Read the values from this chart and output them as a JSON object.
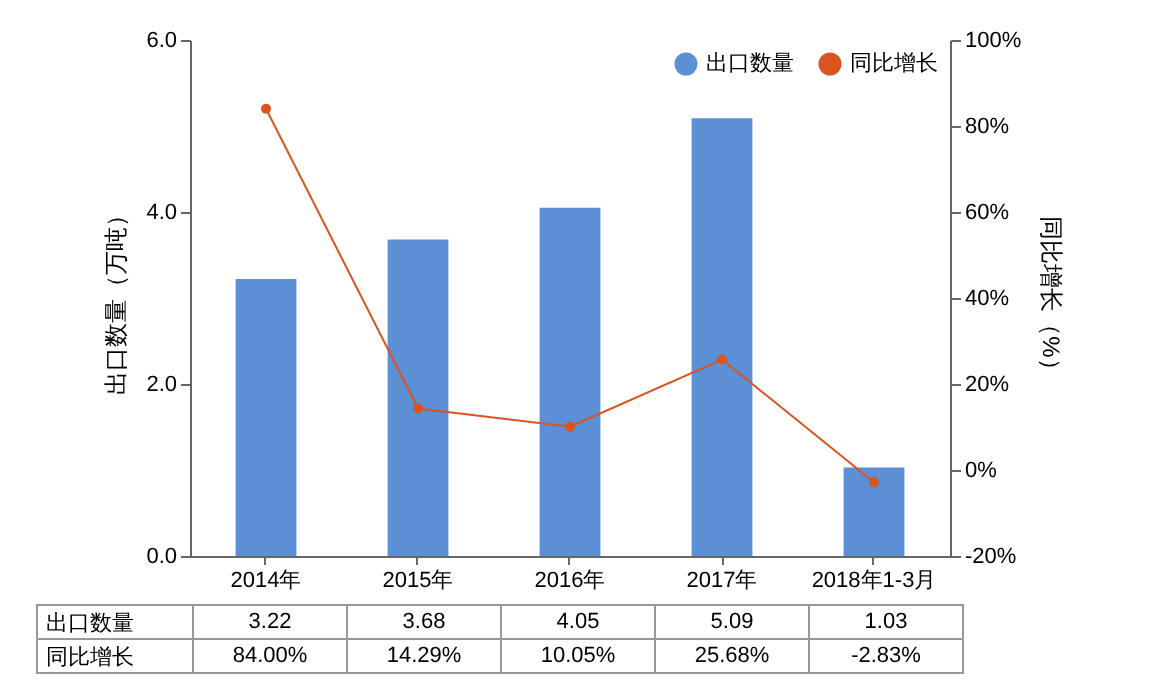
{
  "chart_data": {
    "type": "bar",
    "categories": [
      "2014年",
      "2015年",
      "2016年",
      "2017年",
      "2018年1-3月"
    ],
    "ylabel": "出口数量（万吨）",
    "y2label": "同比增长（%）",
    "ylim": [
      0,
      6
    ],
    "yticks": [
      {
        "value": 0,
        "label": "0.0"
      },
      {
        "value": 2,
        "label": "2.0"
      },
      {
        "value": 4,
        "label": "4.0"
      },
      {
        "value": 6,
        "label": "6.0"
      }
    ],
    "y2lim": [
      -20,
      100
    ],
    "y2ticks": [
      {
        "value": -20,
        "label": "-20%"
      },
      {
        "value": 0,
        "label": "0%"
      },
      {
        "value": 20,
        "label": "20%"
      },
      {
        "value": 40,
        "label": "40%"
      },
      {
        "value": 60,
        "label": "60%"
      },
      {
        "value": 80,
        "label": "80%"
      },
      {
        "value": 100,
        "label": "100%"
      }
    ],
    "series": [
      {
        "name": "出口数量",
        "color": "#5b8fd6",
        "values": [
          3.22,
          3.68,
          4.05,
          5.09,
          1.03
        ],
        "value_labels": [
          "3.22",
          "3.68",
          "4.05",
          "5.09",
          "1.03"
        ]
      },
      {
        "name": "同比增长",
        "type": "line",
        "axis": "y2",
        "color": "#d9541e",
        "marker": "circle",
        "values": [
          84.0,
          14.29,
          10.05,
          25.68,
          -2.83
        ],
        "value_labels": [
          "84.00%",
          "14.29%",
          "10.05%",
          "25.68%",
          "-2.83%"
        ]
      }
    ],
    "legend": "top right",
    "grid": false
  }
}
